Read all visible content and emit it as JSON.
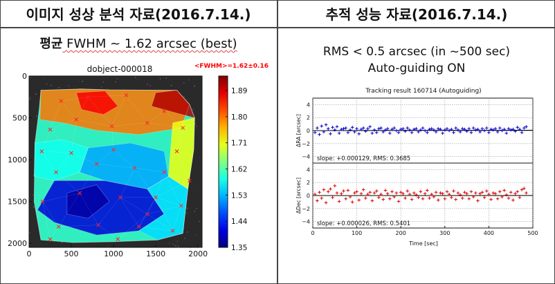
{
  "left_panel": {
    "header": "이미지 성상 분석 자료(2016.7.14.)",
    "subtitle_prefix": "평균",
    "subtitle_rest": " FWHM ~ 1.62 arcsec (best)"
  },
  "right_panel": {
    "header": "추적 성능 자료(2016.7.14.)",
    "line1": "RMS < 0.5 arcsec (in ~500 sec)",
    "line2": "Auto-guiding ON"
  },
  "chart_data": [
    {
      "type": "heatmap",
      "title": "dobject-000018",
      "annotation": "<FWHM>=1.62±0.16",
      "annotation_color": "#ff0000",
      "xlim": [
        0,
        2048
      ],
      "ylim": [
        2048,
        0
      ],
      "x_ticks": [
        0,
        500,
        1000,
        1500,
        2000
      ],
      "y_ticks": [
        0,
        500,
        1000,
        1500,
        2000
      ],
      "colorbar": {
        "min": 1.35,
        "max": 1.94,
        "ticks": [
          1.35,
          1.44,
          1.53,
          1.62,
          1.71,
          1.8,
          1.89
        ],
        "colormap": "jet"
      },
      "footprint": [
        [
          140,
          170
        ],
        [
          620,
          155
        ],
        [
          960,
          165
        ],
        [
          1750,
          170
        ],
        [
          1900,
          340
        ],
        [
          1960,
          500
        ],
        [
          1950,
          880
        ],
        [
          1880,
          1350
        ],
        [
          1820,
          1880
        ],
        [
          1520,
          1960
        ],
        [
          1000,
          1980
        ],
        [
          520,
          1990
        ],
        [
          140,
          1960
        ],
        [
          60,
          1500
        ],
        [
          70,
          800
        ],
        [
          120,
          400
        ]
      ],
      "regions": [
        {
          "points": [
            [
              140,
              170
            ],
            [
              620,
              155
            ],
            [
              960,
              165
            ],
            [
              1750,
              170
            ],
            [
              1900,
              340
            ],
            [
              1800,
              620
            ],
            [
              1300,
              700
            ],
            [
              800,
              650
            ],
            [
              400,
              560
            ],
            [
              130,
              520
            ]
          ],
          "value": 1.8
        },
        {
          "points": [
            [
              1500,
              200
            ],
            [
              1750,
              170
            ],
            [
              1900,
              340
            ],
            [
              1960,
              500
            ],
            [
              1700,
              430
            ],
            [
              1450,
              360
            ]
          ],
          "value": 1.91
        },
        {
          "points": [
            [
              560,
              200
            ],
            [
              900,
              180
            ],
            [
              1050,
              360
            ],
            [
              880,
              460
            ],
            [
              620,
              400
            ]
          ],
          "value": 1.87
        },
        {
          "points": [
            [
              1700,
              560
            ],
            [
              1960,
              500
            ],
            [
              1950,
              880
            ],
            [
              1880,
              1350
            ],
            [
              1650,
              1200
            ]
          ],
          "value": 1.71
        },
        {
          "points": [
            [
              70,
              800
            ],
            [
              400,
              760
            ],
            [
              700,
              860
            ],
            [
              600,
              1150
            ],
            [
              300,
              1250
            ],
            [
              60,
              1200
            ]
          ],
          "value": 1.58
        },
        {
          "points": [
            [
              700,
              860
            ],
            [
              1200,
              800
            ],
            [
              1600,
              900
            ],
            [
              1650,
              1200
            ],
            [
              1400,
              1350
            ],
            [
              900,
              1250
            ],
            [
              600,
              1150
            ]
          ],
          "value": 1.52
        },
        {
          "points": [
            [
              300,
              1250
            ],
            [
              900,
              1250
            ],
            [
              1400,
              1350
            ],
            [
              1600,
              1650
            ],
            [
              1300,
              1850
            ],
            [
              800,
              1900
            ],
            [
              300,
              1750
            ],
            [
              100,
              1600
            ]
          ],
          "value": 1.4
        },
        {
          "points": [
            [
              1400,
              1350
            ],
            [
              1650,
              1200
            ],
            [
              1880,
              1350
            ],
            [
              1820,
              1880
            ],
            [
              1520,
              1960
            ],
            [
              1300,
              1850
            ],
            [
              1600,
              1650
            ]
          ],
          "value": 1.55
        },
        {
          "points": [
            [
              450,
              1400
            ],
            [
              800,
              1300
            ],
            [
              950,
              1500
            ],
            [
              700,
              1700
            ],
            [
              450,
              1650
            ]
          ],
          "value": 1.37
        }
      ],
      "stars": [
        [
          380,
          300
        ],
        [
          700,
          250
        ],
        [
          1150,
          230
        ],
        [
          1600,
          420
        ],
        [
          1820,
          620
        ],
        [
          250,
          640
        ],
        [
          560,
          520
        ],
        [
          980,
          600
        ],
        [
          1400,
          560
        ],
        [
          150,
          900
        ],
        [
          500,
          920
        ],
        [
          1000,
          880
        ],
        [
          1750,
          900
        ],
        [
          320,
          1150
        ],
        [
          800,
          1050
        ],
        [
          1250,
          1100
        ],
        [
          1600,
          1150
        ],
        [
          160,
          1500
        ],
        [
          600,
          1400
        ],
        [
          1080,
          1450
        ],
        [
          1500,
          1450
        ],
        [
          1800,
          1550
        ],
        [
          350,
          1800
        ],
        [
          820,
          1780
        ],
        [
          1300,
          1800
        ],
        [
          1700,
          1850
        ],
        [
          1050,
          1950
        ],
        [
          1400,
          1650
        ],
        [
          250,
          1950
        ],
        [
          1900,
          1250
        ]
      ]
    },
    {
      "type": "scatter",
      "title": "Tracking result 160714 (Autoguiding)",
      "xlabel": "Time [sec]",
      "xlim": [
        0,
        500
      ],
      "x_ticks": [
        0,
        100,
        200,
        300,
        400,
        500
      ],
      "panels": [
        {
          "ylabel": "ΔRA [arcsec]",
          "ylim": [
            -5,
            5
          ],
          "y_ticks": [
            4,
            2,
            0,
            -2,
            -4
          ],
          "color": "#0000cc",
          "annotation": "slope: +0.000129, RMS: 0.3685",
          "x": [
            5,
            10,
            15,
            20,
            25,
            30,
            35,
            40,
            45,
            50,
            55,
            60,
            65,
            70,
            75,
            80,
            85,
            90,
            95,
            100,
            105,
            110,
            115,
            120,
            125,
            130,
            135,
            140,
            145,
            150,
            155,
            160,
            165,
            170,
            175,
            180,
            185,
            190,
            195,
            200,
            205,
            210,
            215,
            220,
            225,
            230,
            235,
            240,
            245,
            250,
            255,
            260,
            265,
            270,
            275,
            280,
            285,
            290,
            295,
            300,
            305,
            310,
            315,
            320,
            325,
            330,
            335,
            340,
            345,
            350,
            355,
            360,
            365,
            370,
            375,
            380,
            385,
            390,
            395,
            400,
            405,
            410,
            415,
            420,
            425,
            430,
            435,
            440,
            445,
            450,
            455,
            460,
            465,
            470,
            475,
            480,
            485
          ],
          "y": [
            -0.3,
            0.4,
            -0.6,
            0.7,
            -0.2,
            0.9,
            0.3,
            -0.5,
            0.5,
            0.1,
            0.6,
            -0.4,
            0.2,
            0.3,
            0.4,
            -0.3,
            0.1,
            0.5,
            -0.2,
            0.3,
            -0.5,
            0.2,
            0.4,
            -0.1,
            0.3,
            0.6,
            -0.4,
            0.1,
            -0.3,
            0.3,
            0.4,
            -0.2,
            0.1,
            0.3,
            -0.4,
            0.2,
            0.4,
            0.0,
            -0.3,
            0.2,
            0.3,
            -0.1,
            0.4,
            0.1,
            -0.3,
            0.2,
            0.3,
            -0.2,
            0.1,
            0.4,
            0.0,
            -0.3,
            0.2,
            0.3,
            0.1,
            -0.2,
            0.3,
            0.2,
            -0.4,
            0.1,
            0.3,
            0.0,
            0.2,
            -0.3,
            0.4,
            0.1,
            -0.2,
            0.3,
            0.2,
            -0.1,
            0.3,
            -0.3,
            0.4,
            0.1,
            0.2,
            -0.2,
            0.3,
            0.0,
            0.4,
            -0.3,
            0.2,
            0.1,
            0.3,
            -0.2,
            0.4,
            0.0,
            0.2,
            -0.4,
            0.3,
            0.1,
            0.2,
            -0.1,
            0.5,
            0.2,
            -0.3,
            0.4,
            0.6
          ],
          "fit": [
            [
              0,
              0.0
            ],
            [
              500,
              0.06
            ]
          ]
        },
        {
          "ylabel": "ΔDec [arcsec]",
          "ylim": [
            -5,
            5
          ],
          "y_ticks": [
            4,
            2,
            0,
            -2,
            -4
          ],
          "color": "#dd0000",
          "annotation": "slope: +0.000026, RMS: 0.5401",
          "x": [
            5,
            10,
            15,
            20,
            25,
            30,
            35,
            40,
            45,
            50,
            55,
            60,
            65,
            70,
            75,
            80,
            85,
            90,
            95,
            100,
            105,
            110,
            115,
            120,
            125,
            130,
            135,
            140,
            145,
            150,
            155,
            160,
            165,
            170,
            175,
            180,
            185,
            190,
            195,
            200,
            205,
            210,
            215,
            220,
            225,
            230,
            235,
            240,
            245,
            250,
            255,
            260,
            265,
            270,
            275,
            280,
            285,
            290,
            295,
            300,
            305,
            310,
            315,
            320,
            325,
            330,
            335,
            340,
            345,
            350,
            355,
            360,
            365,
            370,
            375,
            380,
            385,
            390,
            395,
            400,
            405,
            410,
            415,
            420,
            425,
            430,
            435,
            440,
            445,
            450,
            455,
            460,
            465,
            470,
            475,
            480,
            485
          ],
          "y": [
            0.2,
            -0.8,
            0.5,
            -0.4,
            0.9,
            -1.1,
            0.6,
            1.0,
            -0.3,
            1.5,
            0.4,
            -0.9,
            0.3,
            0.7,
            -0.5,
            0.8,
            -0.2,
            -1.0,
            0.4,
            0.6,
            -0.7,
            0.3,
            0.9,
            -0.4,
            0.2,
            0.5,
            -0.8,
            0.4,
            0.7,
            -0.3,
            0.2,
            -0.6,
            0.8,
            0.3,
            -0.5,
            0.6,
            -0.2,
            0.4,
            -0.9,
            0.5,
            0.3,
            -0.4,
            0.7,
            0.2,
            -0.6,
            0.4,
            0.1,
            -0.3,
            0.6,
            -0.5,
            0.3,
            0.8,
            -0.4,
            0.2,
            -0.2,
            0.5,
            -0.7,
            0.4,
            0.3,
            -0.5,
            0.6,
            0.2,
            -0.3,
            0.7,
            -0.6,
            0.4,
            0.1,
            -0.4,
            0.5,
            0.3,
            -0.5,
            0.6,
            -0.2,
            0.4,
            -0.8,
            0.3,
            0.5,
            -0.3,
            0.7,
            0.2,
            -0.6,
            0.4,
            0.3,
            -0.5,
            0.6,
            -0.2,
            0.8,
            0.1,
            -0.4,
            0.5,
            -0.7,
            0.3,
            0.6,
            -0.3,
            0.9,
            1.1,
            0.4
          ],
          "fit": [
            [
              0,
              0.0
            ],
            [
              500,
              0.01
            ]
          ]
        }
      ]
    }
  ]
}
